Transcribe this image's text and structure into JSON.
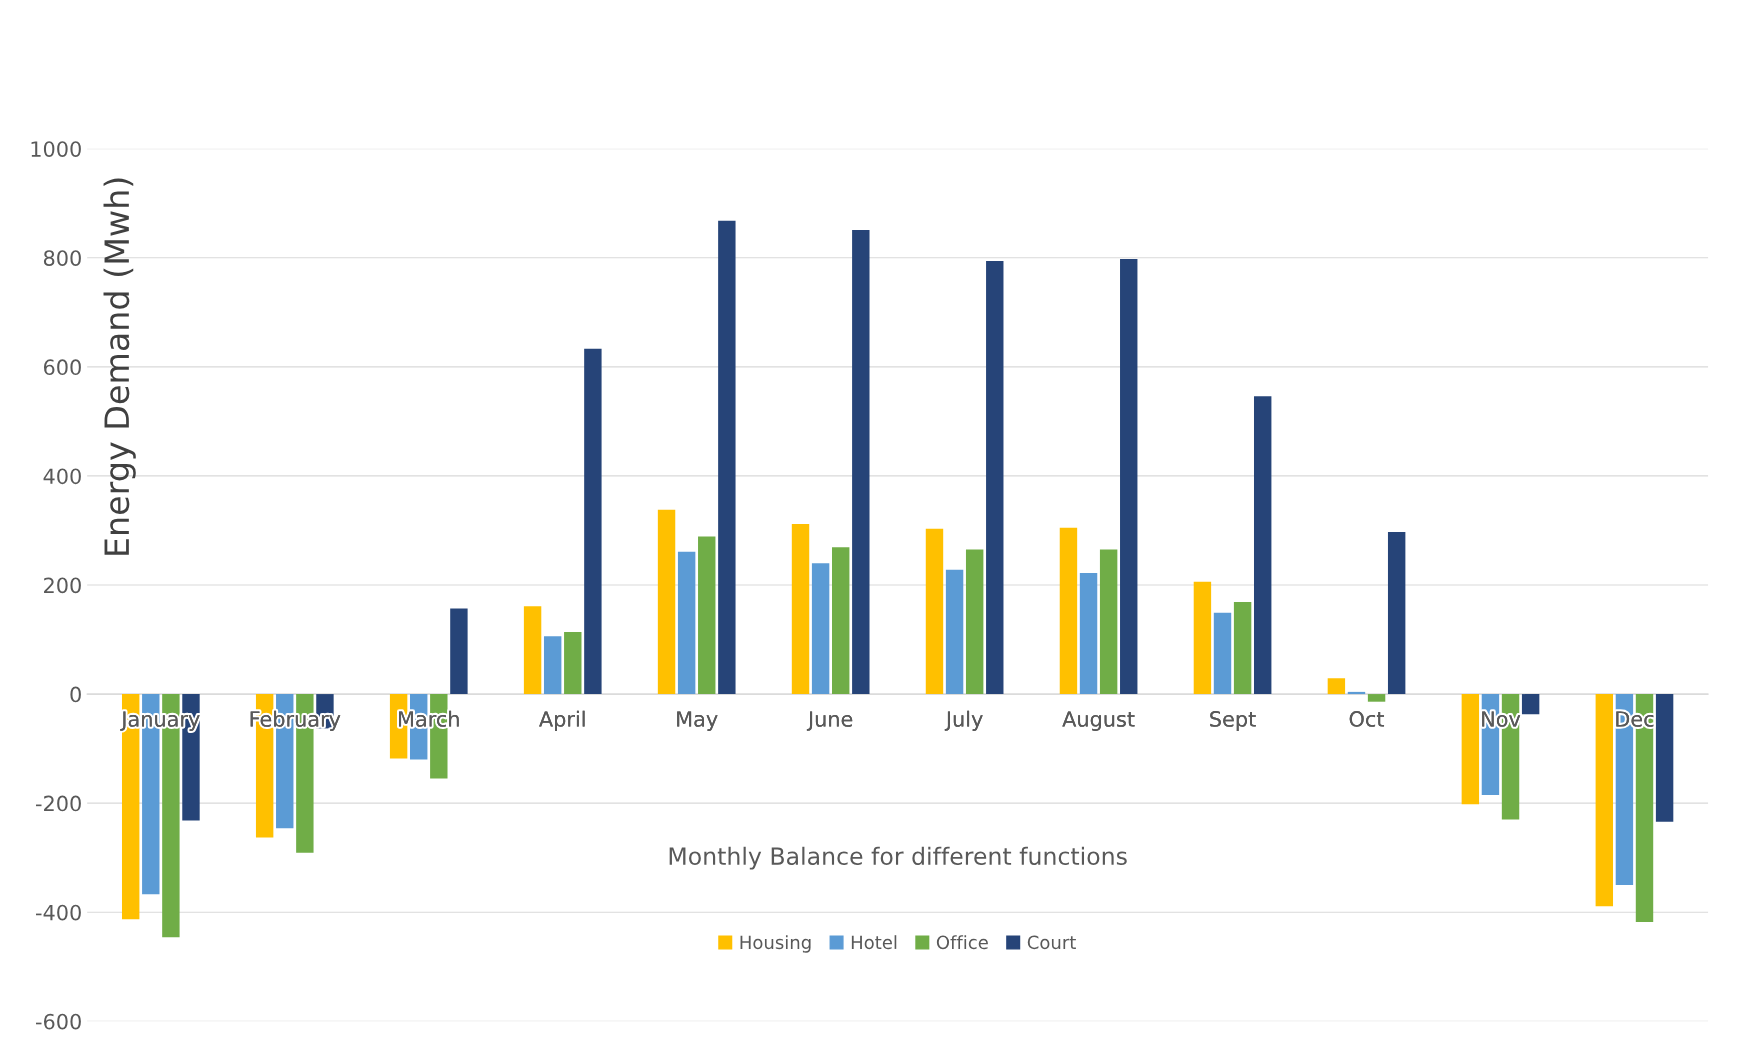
{
  "chart_data": {
    "type": "bar",
    "xlabel": "Monthly Balance for different functions",
    "ylabel": "Energy Demand (Mwh)",
    "categories": [
      "January",
      "February",
      "March",
      "April",
      "May",
      "June",
      "July",
      "August",
      "Sept",
      "Oct",
      "Nov",
      "Dec"
    ],
    "series": [
      {
        "name": "Housing",
        "color": "#ffc000",
        "values": [
          -413,
          -263,
          -118,
          161,
          338,
          312,
          303,
          305,
          206,
          29,
          -202,
          -389
        ]
      },
      {
        "name": "Hotel",
        "color": "#5b9bd5",
        "values": [
          -367,
          -246,
          -120,
          106,
          261,
          240,
          228,
          222,
          149,
          4,
          -185,
          -350
        ]
      },
      {
        "name": "Office",
        "color": "#70ad47",
        "values": [
          -446,
          -291,
          -155,
          114,
          289,
          269,
          265,
          265,
          169,
          -14,
          -230,
          -418
        ]
      },
      {
        "name": "Court",
        "color": "#264478",
        "values": [
          -232,
          -63,
          157,
          633,
          868,
          851,
          794,
          798,
          546,
          297,
          -37,
          -234
        ]
      }
    ],
    "ylim": [
      -600,
      1000
    ],
    "yticks": [
      -600,
      -400,
      -200,
      0,
      200,
      400,
      600,
      800,
      1000
    ],
    "grid": "y",
    "legend": "bottom"
  }
}
